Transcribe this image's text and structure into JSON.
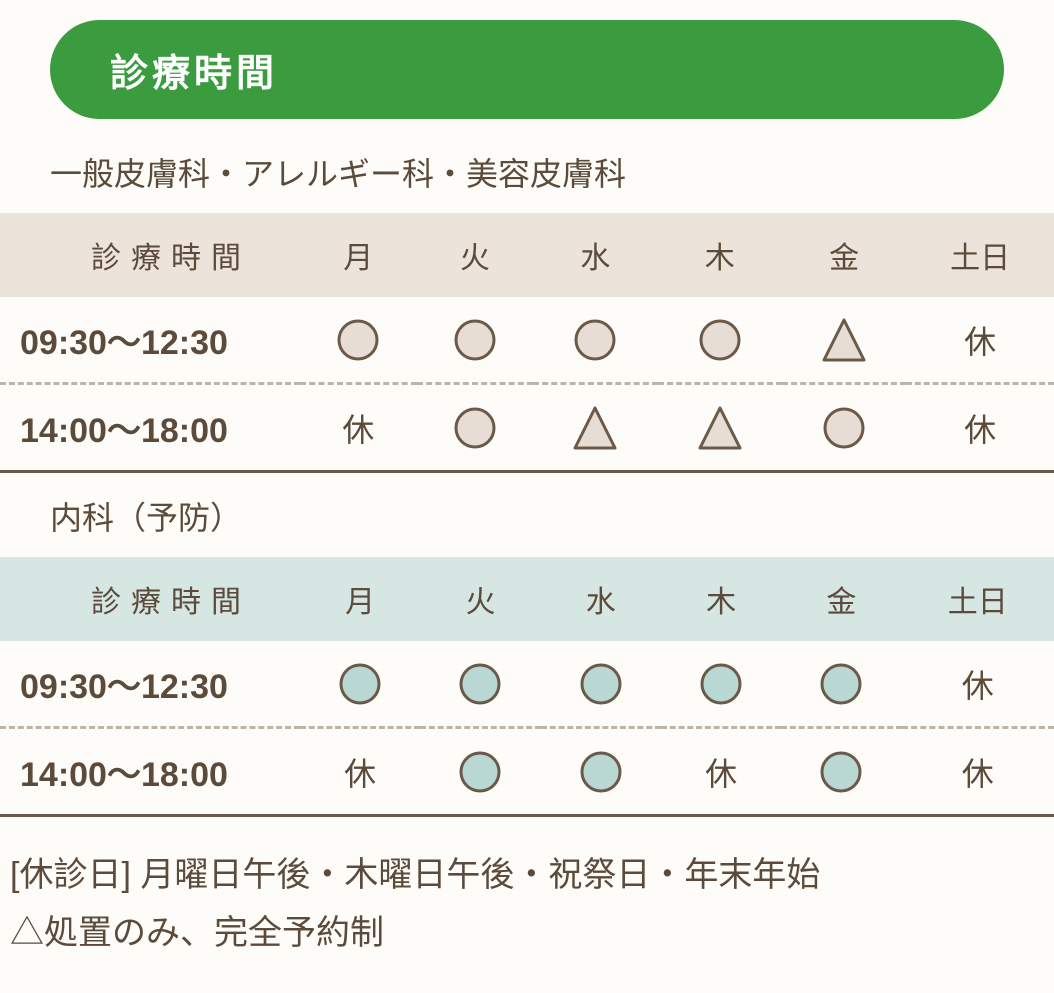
{
  "colors": {
    "badge_bg": "#3a9b3f",
    "badge_text": "#ffffff",
    "text_main": "#5c4a3a",
    "header_bg_1": "#ece3db",
    "header_bg_2": "#d5e6e3",
    "circle_fill_1": "#e7ddd4",
    "circle_fill_2": "#b9d8d3",
    "shape_stroke": "#6b5a4a",
    "divider": "#6b5a4a",
    "divider_light": "#bdb3a8"
  },
  "title": "診療時間",
  "sections": [
    {
      "label": "一般皮膚科・アレルギー科・美容皮膚科",
      "header_bg_key": "header_bg_1",
      "circle_fill_key": "circle_fill_1",
      "time_header": "診療時間",
      "days": [
        "月",
        "火",
        "水",
        "木",
        "金",
        "土日"
      ],
      "rows": [
        {
          "time": "09:30～12:30",
          "cells": [
            "circle",
            "circle",
            "circle",
            "circle",
            "triangle",
            "休"
          ]
        },
        {
          "time": "14:00～18:00",
          "cells": [
            "休",
            "circle",
            "triangle",
            "triangle",
            "circle",
            "休"
          ]
        }
      ]
    },
    {
      "label": "内科（予防）",
      "header_bg_key": "header_bg_2",
      "circle_fill_key": "circle_fill_2",
      "time_header": "診療時間",
      "days": [
        "月",
        "火",
        "水",
        "木",
        "金",
        "土日"
      ],
      "rows": [
        {
          "time": "09:30～12:30",
          "cells": [
            "circle",
            "circle",
            "circle",
            "circle",
            "circle",
            "休"
          ]
        },
        {
          "time": "14:00～18:00",
          "cells": [
            "休",
            "circle",
            "circle",
            "休",
            "circle",
            "休"
          ]
        }
      ]
    }
  ],
  "footnotes": [
    "[休診日] 月曜日午後・木曜日午後・祝祭日・年末年始",
    "△処置のみ、完全予約制"
  ],
  "shapes": {
    "circle_size": 44,
    "circle_stroke_width": 3,
    "triangle_size": 48,
    "triangle_stroke_width": 3
  }
}
